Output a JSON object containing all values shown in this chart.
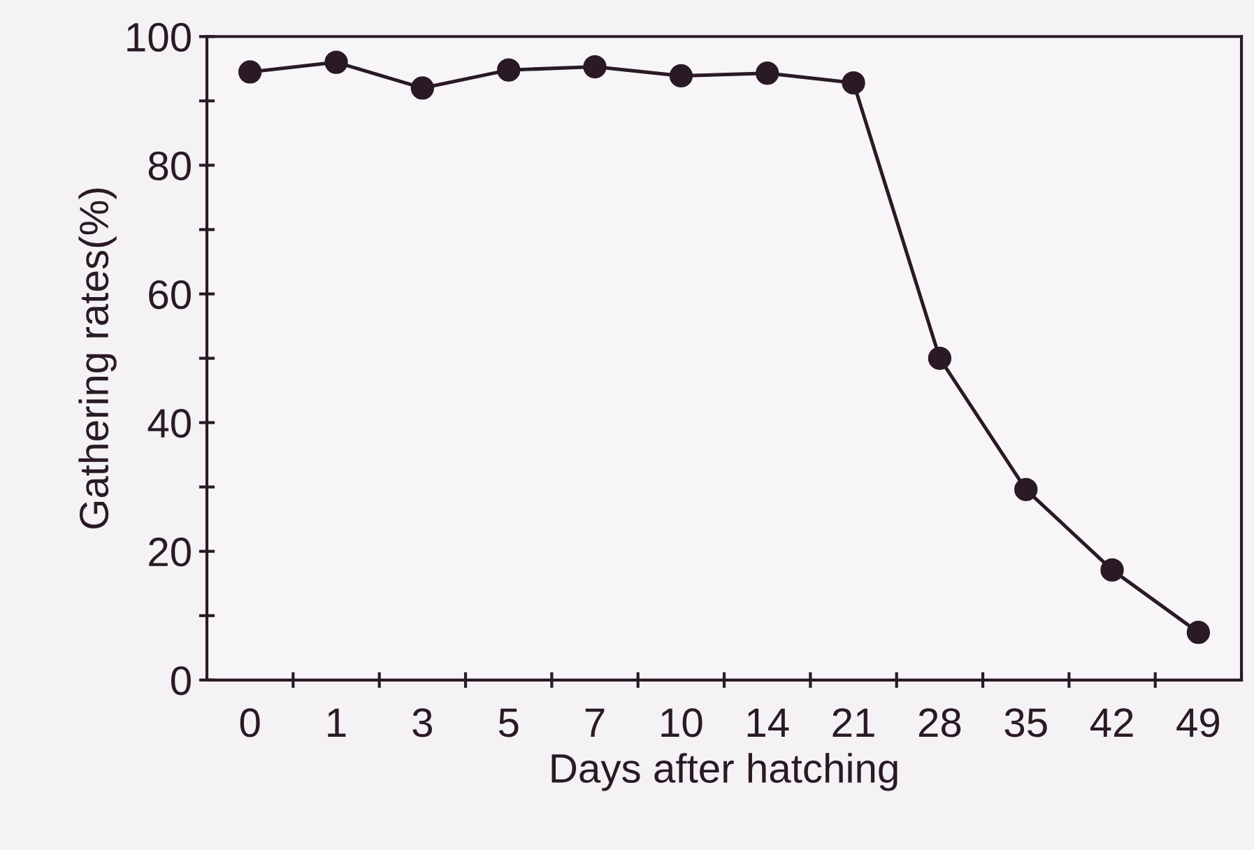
{
  "chart_data": {
    "type": "line",
    "xlabel": "Days after hatching",
    "ylabel": "Gathering rates(%)",
    "categories": [
      "0",
      "1",
      "3",
      "5",
      "7",
      "10",
      "14",
      "21",
      "28",
      "35",
      "42",
      "49"
    ],
    "series": [
      {
        "color": "#2a1a24",
        "values": [
          94.5,
          96,
          92,
          94.8,
          95.3,
          93.9,
          94.3,
          92.8,
          50,
          29.6,
          17.1,
          7.4
        ]
      }
    ],
    "ylim": [
      0,
      100
    ],
    "yticks": [
      0,
      {
        "value": 10,
        "label": null
      },
      20,
      {
        "value": 30,
        "label": null
      },
      40,
      {
        "value": 50,
        "label": null
      },
      60,
      {
        "value": 70,
        "label": null
      },
      80,
      {
        "value": 90,
        "label": null
      },
      100
    ],
    "marker": "circle",
    "line_style": "solid",
    "grid": false,
    "legend": false
  }
}
